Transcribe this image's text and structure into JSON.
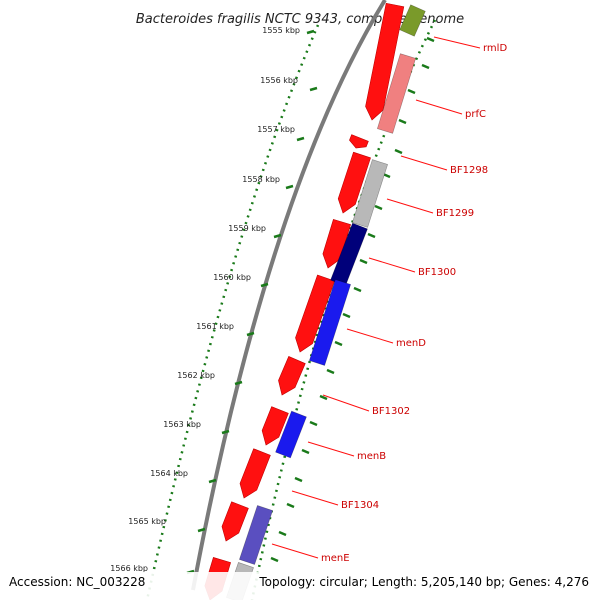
{
  "title": "Bacteroides fragilis NCTC 9343, complete genome",
  "footer": {
    "accession": "Accession: NC_003228",
    "summary": "Topology: circular; Length: 5,205,140 bp; Genes: 4,276"
  },
  "ticks": [
    "1555 kbp",
    "1556 kbp",
    "1557 kbp",
    "1558 kbp",
    "1559 kbp",
    "1560 kbp",
    "1561 kbp",
    "1562 kbp",
    "1563 kbp",
    "1564 kbp",
    "1565 kbp",
    "1566 kbp"
  ],
  "genes": [
    "rmlD",
    "prfC",
    "BF1298",
    "BF1299",
    "BF1300",
    "menD",
    "BF1302",
    "menB",
    "BF1304",
    "menE"
  ],
  "colors": {
    "strand_red": "#ff1010",
    "salmon": "#f08080",
    "olive": "#7a9a2a",
    "grey": "#b8b8b8",
    "blue": "#1a1aee",
    "navy": "#00007a",
    "slate_blue": "#5a4fc0",
    "tick_green": "#1a7a1a",
    "backbone": "#808080",
    "label_red": "#cc0000"
  }
}
